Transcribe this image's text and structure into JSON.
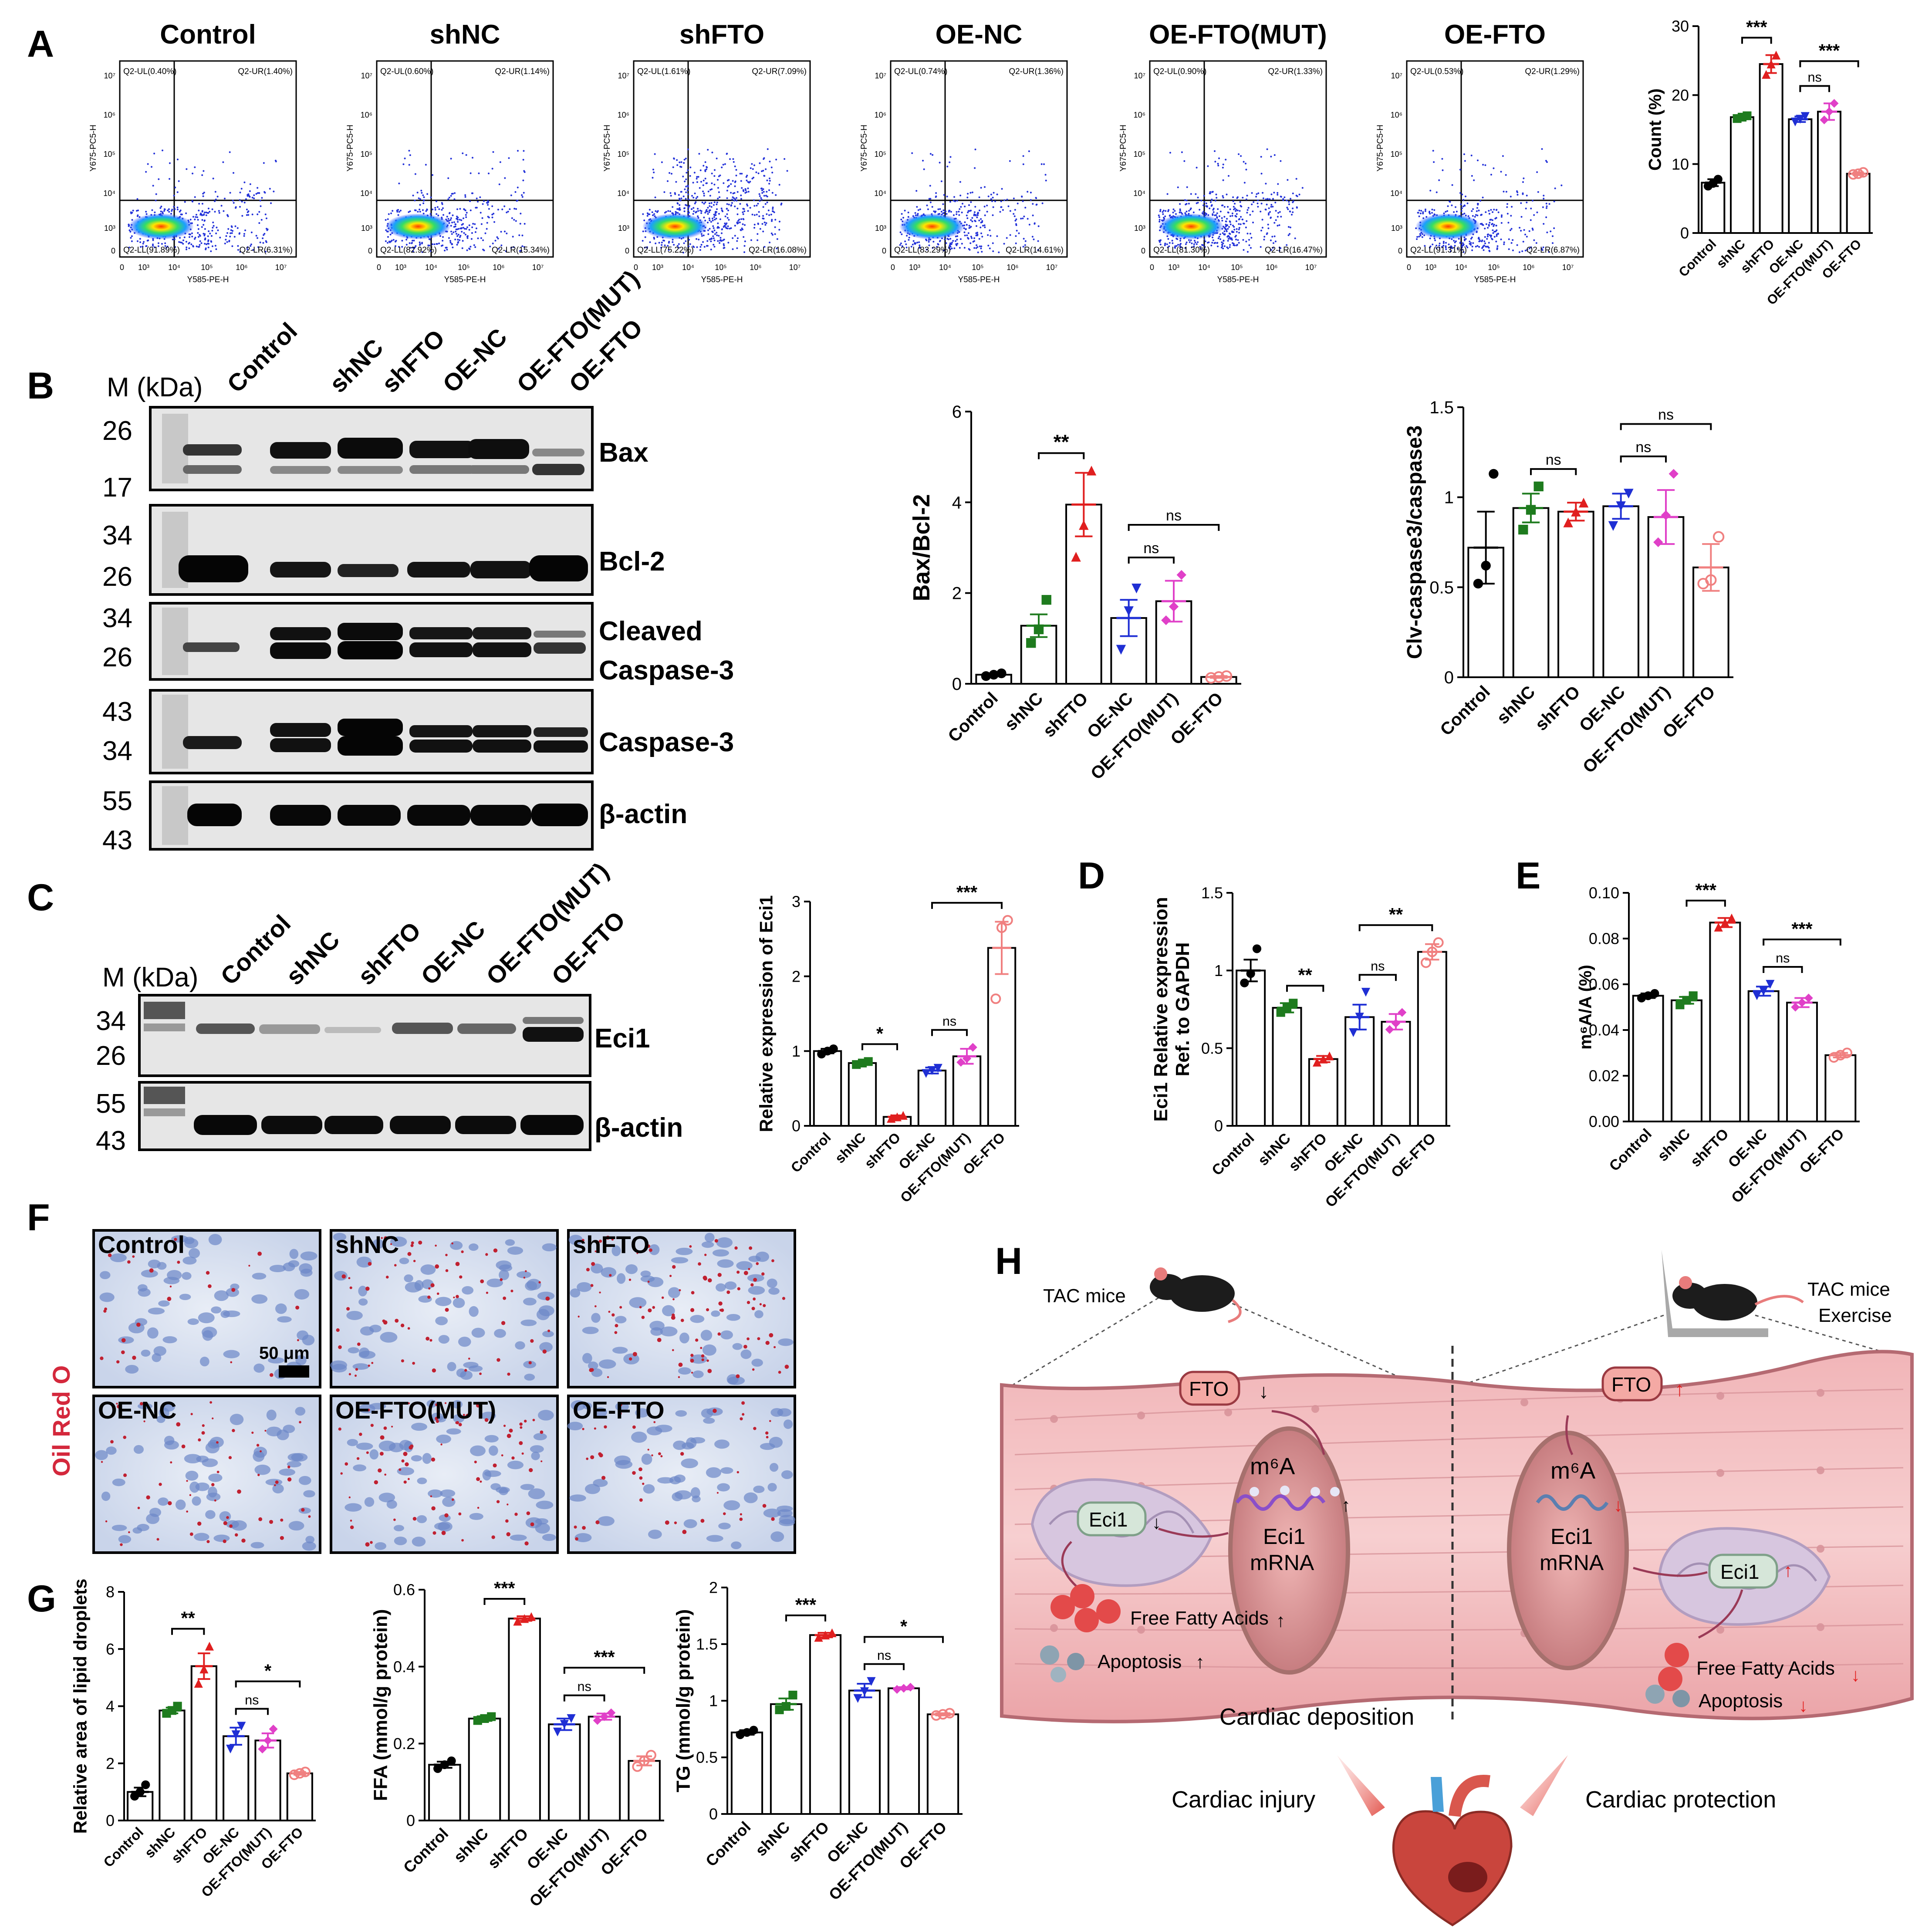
{
  "panels": {
    "A": "A",
    "B": "B",
    "C": "C",
    "D": "D",
    "E": "E",
    "F": "F",
    "G": "G",
    "H": "H"
  },
  "flow": {
    "xlabel": "Y585-PE-H",
    "ylabel": "Y675-PC5-H",
    "ticks": [
      "0",
      "10³",
      "10⁴",
      "10⁵",
      "10⁶",
      "10⁷"
    ],
    "plots": [
      {
        "title": "Control",
        "ul": "Q2-UL(0.40%)",
        "ur": "Q2-UR(1.40%)",
        "ll": "Q2-LL(91.89%)",
        "lr": "Q2-LR(6.31%)"
      },
      {
        "title": "shNC",
        "ul": "Q2-UL(0.60%)",
        "ur": "Q2-UR(1.14%)",
        "ll": "Q2-LL(82.92%)",
        "lr": "Q2-LR(15.34%)"
      },
      {
        "title": "shFTO",
        "ul": "Q2-UL(1.61%)",
        "ur": "Q2-UR(7.09%)",
        "ll": "Q2-LL(75.22%)",
        "lr": "Q2-LR(16.08%)"
      },
      {
        "title": "OE-NC",
        "ul": "Q2-UL(0.74%)",
        "ur": "Q2-UR(1.36%)",
        "ll": "Q2-LL(83.29%)",
        "lr": "Q2-LR(14.61%)"
      },
      {
        "title": "OE-FTO(MUT)",
        "ul": "Q2-UL(0.90%)",
        "ur": "Q2-UR(1.33%)",
        "ll": "Q2-LL(81.30%)",
        "lr": "Q2-LR(16.47%)"
      },
      {
        "title": "OE-FTO",
        "ul": "Q2-UL(0.53%)",
        "ur": "Q2-UR(1.29%)",
        "ll": "Q2-LL(91.31%)",
        "lr": "Q2-LR(6.87%)"
      }
    ]
  },
  "westernB": {
    "mkda": "M (kDa)",
    "lanes": [
      "Control",
      "shNC",
      "shFTO",
      "OE-NC",
      "OE-FTO(MUT)",
      "OE-FTO"
    ],
    "blots": [
      {
        "label": "Bax",
        "markers": [
          "26",
          "17"
        ]
      },
      {
        "label": "Bcl-2",
        "markers": [
          "34",
          "26"
        ]
      },
      {
        "label": "Cleaved Caspase-3",
        "line1": "Cleaved",
        "line2": "Caspase-3",
        "markers": [
          "34",
          "26"
        ]
      },
      {
        "label": "Caspase-3",
        "markers": [
          "43",
          "34"
        ]
      },
      {
        "label": "β-actin",
        "markers": [
          "55",
          "43"
        ]
      }
    ]
  },
  "westernC": {
    "mkda": "M (kDa)",
    "lanes": [
      "Control",
      "shNC",
      "shFTO",
      "OE-NC",
      "OE-FTO(MUT)",
      "OE-FTO"
    ],
    "blots": [
      {
        "label": "Eci1",
        "markers": [
          "34",
          "26"
        ]
      },
      {
        "label": "β-actin",
        "markers": [
          "55",
          "43"
        ]
      }
    ]
  },
  "photos": {
    "side_label": "Oil Red O",
    "scale_label": "50 μm",
    "tiles": [
      "Control",
      "shNC",
      "shFTO",
      "OE-NC",
      "OE-FTO(MUT)",
      "OE-FTO"
    ]
  },
  "schematic": {
    "tac_mice": "TAC mice",
    "tac_ex1": "TAC mice",
    "tac_ex2": "Exercise",
    "fto": "FTO",
    "m6a": "m⁶A",
    "eci1": "Eci1",
    "mrna1": "Eci1",
    "mrna2": "mRNA",
    "ffa": "Free Fatty Acids",
    "apoptosis": "Apoptosis",
    "deposition": "Cardiac deposition",
    "injury": "Cardiac injury",
    "protection": "Cardiac protection"
  },
  "colors": {
    "Control": "#000000",
    "shNC": "#1e7b1e",
    "shFTO": "#e01f1f",
    "OE-NC": "#1f2fd4",
    "OE-FTO(MUT)": "#e040c8",
    "OE-FTO": "#f08080"
  },
  "chart_data": [
    {
      "id": "A-bar",
      "type": "bar",
      "categories": [
        "Control",
        "shNC",
        "shFTO",
        "OE-NC",
        "OE-FTO(MUT)",
        "OE-FTO"
      ],
      "values": [
        7.3,
        16.8,
        24.5,
        16.5,
        17.6,
        8.6
      ],
      "errors": [
        0.5,
        0.3,
        1.3,
        0.4,
        1.2,
        0.2
      ],
      "points": [
        [
          6.8,
          7.2,
          7.8
        ],
        [
          16.6,
          16.8,
          17.0
        ],
        [
          23.0,
          24.5,
          25.8
        ],
        [
          16.1,
          16.5,
          16.9
        ],
        [
          16.4,
          17.6,
          18.8
        ],
        [
          8.5,
          8.6,
          8.8
        ]
      ],
      "ylabel": "Count (%)",
      "ylim": [
        0,
        30
      ],
      "yticks": [
        0,
        10,
        20,
        30
      ],
      "annotations": [
        {
          "from": 1,
          "to": 2,
          "text": "***"
        },
        {
          "from": 3,
          "to": 4,
          "text": "ns"
        },
        {
          "from": 3,
          "to": 5,
          "text": "***"
        }
      ]
    },
    {
      "id": "B-bax",
      "type": "bar",
      "categories": [
        "Control",
        "shNC",
        "shFTO",
        "OE-NC",
        "OE-FTO(MUT)",
        "OE-FTO"
      ],
      "values": [
        0.2,
        1.28,
        3.95,
        1.45,
        1.82,
        0.15
      ],
      "errors": [
        0.03,
        0.25,
        0.7,
        0.4,
        0.45,
        0.02
      ],
      "points": [
        [
          0.17,
          0.2,
          0.23
        ],
        [
          0.9,
          1.2,
          1.85
        ],
        [
          2.8,
          3.5,
          4.7
        ],
        [
          0.75,
          1.6,
          2.1
        ],
        [
          1.4,
          1.7,
          2.4
        ],
        [
          0.13,
          0.15,
          0.17
        ]
      ],
      "ylabel": "Bax/Bcl-2",
      "ylim": [
        0,
        6
      ],
      "yticks": [
        0,
        2,
        4,
        6
      ],
      "annotations": [
        {
          "from": 1,
          "to": 2,
          "text": "**"
        },
        {
          "from": 3,
          "to": 4,
          "text": "ns"
        },
        {
          "from": 3,
          "to": 5,
          "text": "ns"
        }
      ]
    },
    {
      "id": "B-clv",
      "type": "bar",
      "categories": [
        "Control",
        "shNC",
        "shFTO",
        "OE-NC",
        "OE-FTO(MUT)",
        "OE-FTO"
      ],
      "values": [
        0.72,
        0.94,
        0.92,
        0.95,
        0.89,
        0.61
      ],
      "errors": [
        0.2,
        0.08,
        0.05,
        0.07,
        0.15,
        0.13
      ],
      "points": [
        [
          0.52,
          0.62,
          1.13
        ],
        [
          0.82,
          0.93,
          1.06
        ],
        [
          0.86,
          0.92,
          0.97
        ],
        [
          0.84,
          0.95,
          1.02
        ],
        [
          0.75,
          0.9,
          1.13
        ],
        [
          0.52,
          0.54,
          0.78
        ]
      ],
      "ylabel": "Clv-caspase3/caspase3",
      "ylim": [
        0,
        1.5
      ],
      "yticks": [
        0.0,
        0.5,
        1.0,
        1.5
      ],
      "annotations": [
        {
          "from": 1,
          "to": 2,
          "text": "ns"
        },
        {
          "from": 3,
          "to": 4,
          "text": "ns"
        },
        {
          "from": 3,
          "to": 5,
          "text": "ns"
        }
      ]
    },
    {
      "id": "C-eci1",
      "type": "bar",
      "categories": [
        "Control",
        "shNC",
        "shFTO",
        "OE-NC",
        "OE-FTO(MUT)",
        "OE-FTO"
      ],
      "values": [
        1.0,
        0.84,
        0.12,
        0.74,
        0.93,
        2.38
      ],
      "errors": [
        0.03,
        0.02,
        0.02,
        0.04,
        0.1,
        0.35
      ],
      "points": [
        [
          0.96,
          1.0,
          1.03
        ],
        [
          0.82,
          0.84,
          0.86
        ],
        [
          0.1,
          0.12,
          0.14
        ],
        [
          0.7,
          0.74,
          0.77
        ],
        [
          0.85,
          0.9,
          1.05
        ],
        [
          1.7,
          2.65,
          2.75
        ]
      ],
      "ylabel": "Relative expression of Eci1",
      "ylim": [
        0,
        3
      ],
      "yticks": [
        0,
        1,
        2,
        3
      ],
      "annotations": [
        {
          "from": 1,
          "to": 2,
          "text": "*"
        },
        {
          "from": 3,
          "to": 4,
          "text": "ns"
        },
        {
          "from": 3,
          "to": 5,
          "text": "***"
        }
      ]
    },
    {
      "id": "D",
      "type": "bar",
      "categories": [
        "Control",
        "shNC",
        "shFTO",
        "OE-NC",
        "OE-FTO(MUT)",
        "OE-FTO"
      ],
      "values": [
        1.0,
        0.76,
        0.43,
        0.7,
        0.67,
        1.12
      ],
      "errors": [
        0.07,
        0.03,
        0.02,
        0.08,
        0.05,
        0.05
      ],
      "points": [
        [
          0.92,
          0.98,
          1.14
        ],
        [
          0.73,
          0.76,
          0.79
        ],
        [
          0.41,
          0.43,
          0.45
        ],
        [
          0.6,
          0.7,
          0.86
        ],
        [
          0.62,
          0.66,
          0.73
        ],
        [
          1.05,
          1.12,
          1.18
        ]
      ],
      "ylabel_line1": "Eci1 Relative expression",
      "ylabel_line2": "Ref. to GAPDH",
      "ylim": [
        0,
        1.5
      ],
      "yticks": [
        0.0,
        0.5,
        1.0,
        1.5
      ],
      "annotations": [
        {
          "from": 1,
          "to": 2,
          "text": "**"
        },
        {
          "from": 3,
          "to": 4,
          "text": "ns"
        },
        {
          "from": 3,
          "to": 5,
          "text": "**"
        }
      ]
    },
    {
      "id": "E",
      "type": "bar",
      "categories": [
        "Control",
        "shNC",
        "shFTO",
        "OE-NC",
        "OE-FTO(MUT)",
        "OE-FTO"
      ],
      "values": [
        0.055,
        0.053,
        0.087,
        0.057,
        0.052,
        0.029
      ],
      "errors": [
        0.001,
        0.0015,
        0.002,
        0.002,
        0.002,
        0.001
      ],
      "points": [
        [
          0.054,
          0.055,
          0.056
        ],
        [
          0.051,
          0.053,
          0.055
        ],
        [
          0.085,
          0.087,
          0.089
        ],
        [
          0.055,
          0.057,
          0.06
        ],
        [
          0.05,
          0.052,
          0.054
        ],
        [
          0.028,
          0.029,
          0.03
        ]
      ],
      "ylabel": "m⁶A/A (%)",
      "ylim": [
        0,
        0.1
      ],
      "yticks": [
        0.0,
        0.02,
        0.04,
        0.06,
        0.08,
        0.1
      ],
      "ytick_labels": [
        "0.00",
        "0.02",
        "0.04",
        "0.06",
        "0.08",
        "0.10"
      ],
      "annotations": [
        {
          "from": 1,
          "to": 2,
          "text": "***"
        },
        {
          "from": 3,
          "to": 4,
          "text": "ns"
        },
        {
          "from": 3,
          "to": 5,
          "text": "***"
        }
      ]
    },
    {
      "id": "G-lipid",
      "type": "bar",
      "categories": [
        "Control",
        "shNC",
        "shFTO",
        "OE-NC",
        "OE-FTO(MUT)",
        "OE-FTO"
      ],
      "values": [
        1.0,
        3.85,
        5.4,
        2.95,
        2.8,
        1.65
      ],
      "errors": [
        0.15,
        0.1,
        0.45,
        0.3,
        0.25,
        0.05
      ],
      "points": [
        [
          0.85,
          1.0,
          1.25
        ],
        [
          3.75,
          3.85,
          4.0
        ],
        [
          4.8,
          5.3,
          6.1
        ],
        [
          2.5,
          3.0,
          3.3
        ],
        [
          2.5,
          2.8,
          3.2
        ],
        [
          1.6,
          1.65,
          1.7
        ]
      ],
      "ylabel": "Relative area of lipid droplets",
      "ylim": [
        0,
        8
      ],
      "yticks": [
        0,
        2,
        4,
        6,
        8
      ],
      "annotations": [
        {
          "from": 1,
          "to": 2,
          "text": "**"
        },
        {
          "from": 3,
          "to": 4,
          "text": "ns"
        },
        {
          "from": 3,
          "to": 5,
          "text": "*"
        }
      ]
    },
    {
      "id": "G-ffa",
      "type": "bar",
      "categories": [
        "Control",
        "shNC",
        "shFTO",
        "OE-NC",
        "OE-FTO(MUT)",
        "OE-FTO"
      ],
      "values": [
        0.145,
        0.265,
        0.525,
        0.25,
        0.27,
        0.155
      ],
      "errors": [
        0.008,
        0.006,
        0.006,
        0.015,
        0.008,
        0.012
      ],
      "points": [
        [
          0.135,
          0.145,
          0.155
        ],
        [
          0.26,
          0.265,
          0.27
        ],
        [
          0.518,
          0.525,
          0.53
        ],
        [
          0.23,
          0.25,
          0.265
        ],
        [
          0.26,
          0.27,
          0.28
        ],
        [
          0.14,
          0.155,
          0.17
        ]
      ],
      "ylabel": "FFA (mmol/g protein)",
      "ylim": [
        0,
        0.6
      ],
      "yticks": [
        0.0,
        0.2,
        0.4,
        0.6
      ],
      "annotations": [
        {
          "from": 1,
          "to": 2,
          "text": "***"
        },
        {
          "from": 3,
          "to": 4,
          "text": "ns"
        },
        {
          "from": 3,
          "to": 5,
          "text": "***"
        }
      ]
    },
    {
      "id": "G-tg",
      "type": "bar",
      "categories": [
        "Control",
        "shNC",
        "shFTO",
        "OE-NC",
        "OE-FTO(MUT)",
        "OE-FTO"
      ],
      "values": [
        0.72,
        0.97,
        1.58,
        1.09,
        1.11,
        0.88
      ],
      "errors": [
        0.02,
        0.05,
        0.02,
        0.06,
        0.01,
        0.01
      ],
      "points": [
        [
          0.7,
          0.72,
          0.74
        ],
        [
          0.92,
          0.95,
          1.05
        ],
        [
          1.56,
          1.58,
          1.6
        ],
        [
          1.02,
          1.08,
          1.17
        ],
        [
          1.1,
          1.11,
          1.12
        ],
        [
          0.87,
          0.88,
          0.89
        ]
      ],
      "ylabel": "TG (mmol/g protein)",
      "ylim": [
        0,
        2.0
      ],
      "yticks": [
        0.0,
        0.5,
        1.0,
        1.5,
        2.0
      ],
      "annotations": [
        {
          "from": 1,
          "to": 2,
          "text": "***"
        },
        {
          "from": 3,
          "to": 4,
          "text": "ns"
        },
        {
          "from": 3,
          "to": 5,
          "text": "*"
        }
      ]
    }
  ]
}
